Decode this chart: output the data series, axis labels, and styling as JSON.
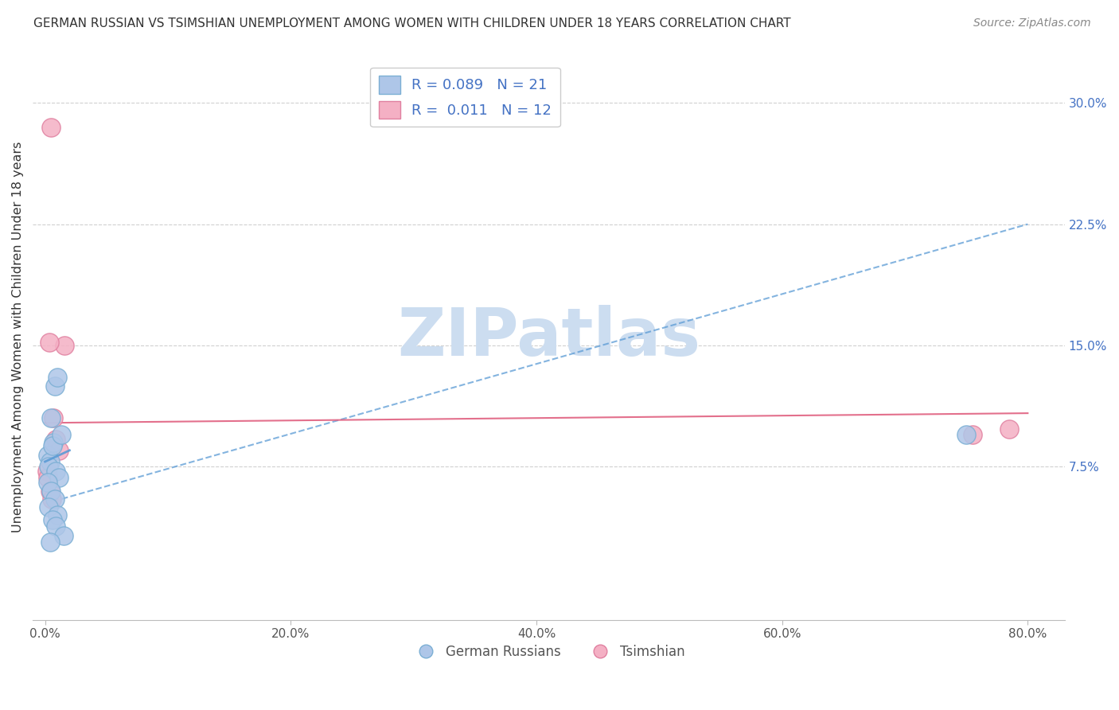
{
  "title": "GERMAN RUSSIAN VS TSIMSHIAN UNEMPLOYMENT AMONG WOMEN WITH CHILDREN UNDER 18 YEARS CORRELATION CHART",
  "source": "Source: ZipAtlas.com",
  "ylabel": "Unemployment Among Women with Children Under 18 years",
  "x_tick_labels": [
    "0.0%",
    "20.0%",
    "40.0%",
    "60.0%",
    "80.0%"
  ],
  "x_tick_values": [
    0,
    20,
    40,
    60,
    80
  ],
  "y_tick_labels": [
    "7.5%",
    "15.0%",
    "22.5%",
    "30.0%"
  ],
  "y_tick_values": [
    7.5,
    15.0,
    22.5,
    30.0
  ],
  "xlim": [
    -1,
    83
  ],
  "ylim": [
    -2,
    33
  ],
  "german_russian_x": [
    0.2,
    0.4,
    0.5,
    0.7,
    0.8,
    1.0,
    0.3,
    0.6,
    0.9,
    1.1,
    0.2,
    0.5,
    1.3,
    0.8,
    0.3,
    1.0,
    0.6,
    0.9,
    1.5,
    0.4,
    75.0
  ],
  "german_russian_y": [
    8.2,
    7.8,
    10.5,
    9.0,
    12.5,
    13.0,
    7.5,
    8.8,
    7.2,
    6.8,
    6.5,
    6.0,
    9.5,
    5.5,
    5.0,
    4.5,
    4.2,
    3.8,
    3.2,
    2.8,
    9.5
  ],
  "tsimshian_x": [
    0.15,
    0.25,
    0.4,
    0.55,
    0.7,
    0.9,
    1.1,
    1.6,
    0.35,
    75.5,
    78.5,
    0.5
  ],
  "tsimshian_y": [
    7.2,
    6.8,
    6.0,
    5.5,
    10.5,
    9.2,
    8.5,
    15.0,
    15.2,
    9.5,
    9.8,
    28.5
  ],
  "blue_color": "#aec6e8",
  "pink_color": "#f4b0c4",
  "blue_edge": "#7bafd4",
  "pink_edge": "#e080a0",
  "trend_blue_color": "#5b9bd5",
  "trend_pink_color": "#e06080",
  "trend_blue_start_y": 5.2,
  "trend_blue_end_y": 22.5,
  "trend_pink_start_y": 10.2,
  "trend_pink_end_y": 10.8,
  "watermark_text": "ZIPatlas",
  "watermark_color": "#ccddf0",
  "background_color": "#ffffff",
  "grid_color": "#d0d0d0",
  "R_blue": 0.089,
  "R_pink": 0.011,
  "N_blue": 21,
  "N_pink": 12,
  "title_fontsize": 11,
  "source_fontsize": 10
}
